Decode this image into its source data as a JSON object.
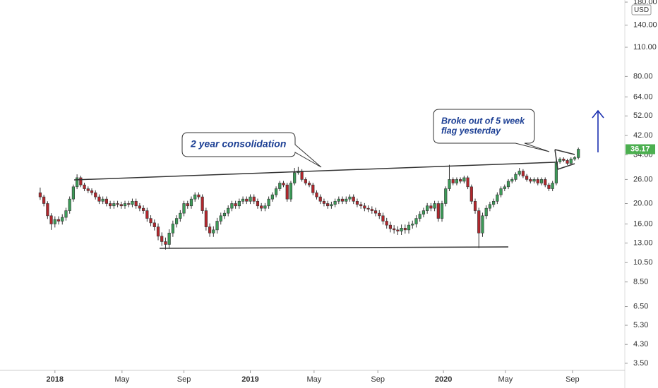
{
  "chart_data": {
    "type": "candlestick",
    "log_scale": true,
    "currency": "USD",
    "up_color": "#3c9b58",
    "down_color": "#b2262c",
    "xlim": [
      -10.9,
      158.6
    ],
    "xticks": [
      {
        "value": 4,
        "label": "2018"
      },
      {
        "value": 22.2,
        "label": "May"
      },
      {
        "value": 39,
        "label": "Sep"
      },
      {
        "value": 57,
        "label": "2019"
      },
      {
        "value": 74.3,
        "label": "May"
      },
      {
        "value": 91.6,
        "label": "Sep"
      },
      {
        "value": 109.4,
        "label": "2020"
      },
      {
        "value": 126.2,
        "label": "May"
      },
      {
        "value": 144.4,
        "label": "Sep"
      }
    ],
    "ylim": [
      3.24,
      184.2
    ],
    "yticks": [
      {
        "value": 3.5,
        "label": "3.50"
      },
      {
        "value": 4.3,
        "label": "4.30"
      },
      {
        "value": 5.3,
        "label": "5.30"
      },
      {
        "value": 6.5,
        "label": "6.50"
      },
      {
        "value": 8.5,
        "label": "8.50"
      },
      {
        "value": 10.5,
        "label": "10.50"
      },
      {
        "value": 13,
        "label": "13.00"
      },
      {
        "value": 16,
        "label": "16.00"
      },
      {
        "value": 20,
        "label": "20.00"
      },
      {
        "value": 26,
        "label": "26.00"
      },
      {
        "value": 34,
        "label": "34.00"
      },
      {
        "value": 42,
        "label": "42.00"
      },
      {
        "value": 52,
        "label": "52.00"
      },
      {
        "value": 64,
        "label": "64.00"
      },
      {
        "value": 80,
        "label": "80.00"
      },
      {
        "value": 110,
        "label": "110.00"
      },
      {
        "value": 140,
        "label": "140.00"
      },
      {
        "value": 180,
        "label": "180.00"
      }
    ],
    "annotations": [
      {
        "lines": [
          "2 year consolidation"
        ]
      },
      {
        "lines": [
          "Broke out of 5 week",
          "flag yesterday"
        ]
      }
    ],
    "candles": [
      [
        22.5,
        23.8,
        20.8,
        21.5
      ],
      [
        21.5,
        22.0,
        19.4,
        20.0
      ],
      [
        20.0,
        20.5,
        16.9,
        17.5
      ],
      [
        17.5,
        18.0,
        15.0,
        16.0
      ],
      [
        16.0,
        17.4,
        15.4,
        16.8
      ],
      [
        16.8,
        17.4,
        15.9,
        16.5
      ],
      [
        16.5,
        17.8,
        15.9,
        17.2
      ],
      [
        17.2,
        19.1,
        16.6,
        18.5
      ],
      [
        18.5,
        21.6,
        17.9,
        21.0
      ],
      [
        21.0,
        24.6,
        20.4,
        24.0
      ],
      [
        24.0,
        27.5,
        23.4,
        26.5
      ],
      [
        26.5,
        27.1,
        23.9,
        24.5
      ],
      [
        24.5,
        25.1,
        22.9,
        23.5
      ],
      [
        23.5,
        24.1,
        22.4,
        23.0
      ],
      [
        23.0,
        23.6,
        21.9,
        22.5
      ],
      [
        22.5,
        23.1,
        20.9,
        21.5
      ],
      [
        21.5,
        22.1,
        19.9,
        20.5
      ],
      [
        20.5,
        21.6,
        19.9,
        21.0
      ],
      [
        21.0,
        21.6,
        19.4,
        20.0
      ],
      [
        20.0,
        20.6,
        18.9,
        19.5
      ],
      [
        19.5,
        20.6,
        18.9,
        20.0
      ],
      [
        20.0,
        20.6,
        19.2,
        19.8
      ],
      [
        19.8,
        20.4,
        18.9,
        19.5
      ],
      [
        19.5,
        20.6,
        18.9,
        20.0
      ],
      [
        20.0,
        20.6,
        19.2,
        19.8
      ],
      [
        19.8,
        21.1,
        19.2,
        20.5
      ],
      [
        20.5,
        21.1,
        18.9,
        19.5
      ],
      [
        19.5,
        20.1,
        18.4,
        19.0
      ],
      [
        19.0,
        19.6,
        17.9,
        18.5
      ],
      [
        18.5,
        19.1,
        16.4,
        17.0
      ],
      [
        17.0,
        17.6,
        15.6,
        16.2
      ],
      [
        16.2,
        16.8,
        14.9,
        15.5
      ],
      [
        15.5,
        16.1,
        13.4,
        14.0
      ],
      [
        14.0,
        14.6,
        12.6,
        13.2
      ],
      [
        13.2,
        13.8,
        12.1,
        12.8
      ],
      [
        12.8,
        15.1,
        12.2,
        14.5
      ],
      [
        14.5,
        16.6,
        13.9,
        16.0
      ],
      [
        16.0,
        17.6,
        15.4,
        17.0
      ],
      [
        17.0,
        18.6,
        16.4,
        18.0
      ],
      [
        18.0,
        20.6,
        17.4,
        20.0
      ],
      [
        20.0,
        20.6,
        18.9,
        19.5
      ],
      [
        19.5,
        21.6,
        18.9,
        21.0
      ],
      [
        21.0,
        22.6,
        20.4,
        22.0
      ],
      [
        22.0,
        22.6,
        20.9,
        21.5
      ],
      [
        21.5,
        22.1,
        17.9,
        18.5
      ],
      [
        18.5,
        19.1,
        14.9,
        15.5
      ],
      [
        15.5,
        16.1,
        13.9,
        14.5
      ],
      [
        14.5,
        15.6,
        13.9,
        15.0
      ],
      [
        15.0,
        17.1,
        14.4,
        16.5
      ],
      [
        16.5,
        18.1,
        15.9,
        17.5
      ],
      [
        17.5,
        18.6,
        16.9,
        18.0
      ],
      [
        18.0,
        19.6,
        17.4,
        19.0
      ],
      [
        19.0,
        20.6,
        18.4,
        20.0
      ],
      [
        20.0,
        20.6,
        18.9,
        19.5
      ],
      [
        19.5,
        21.1,
        18.9,
        20.5
      ],
      [
        20.5,
        21.6,
        19.9,
        21.0
      ],
      [
        21.0,
        21.6,
        19.9,
        20.5
      ],
      [
        20.5,
        22.1,
        19.9,
        21.5
      ],
      [
        21.5,
        22.1,
        19.9,
        20.5
      ],
      [
        20.5,
        21.1,
        18.9,
        19.5
      ],
      [
        19.5,
        20.1,
        18.4,
        19.0
      ],
      [
        19.0,
        20.1,
        18.4,
        19.5
      ],
      [
        19.5,
        21.6,
        18.9,
        21.0
      ],
      [
        21.0,
        22.6,
        20.4,
        22.0
      ],
      [
        22.0,
        24.1,
        21.4,
        23.5
      ],
      [
        23.5,
        25.6,
        22.9,
        25.0
      ],
      [
        25.0,
        25.6,
        23.9,
        24.5
      ],
      [
        24.5,
        25.1,
        20.4,
        21.0
      ],
      [
        21.0,
        25.6,
        20.4,
        25.0
      ],
      [
        25.0,
        29.5,
        24.4,
        28.0
      ],
      [
        28.0,
        29.8,
        27.4,
        28.5
      ],
      [
        28.5,
        29.1,
        25.4,
        26.0
      ],
      [
        26.0,
        26.6,
        24.4,
        25.0
      ],
      [
        25.0,
        25.6,
        23.9,
        24.5
      ],
      [
        24.5,
        25.1,
        21.9,
        22.5
      ],
      [
        22.5,
        23.1,
        20.9,
        21.5
      ],
      [
        21.5,
        22.1,
        19.9,
        20.5
      ],
      [
        20.5,
        21.1,
        19.4,
        20.0
      ],
      [
        20.0,
        20.6,
        18.9,
        19.5
      ],
      [
        19.5,
        20.4,
        18.9,
        19.8
      ],
      [
        19.8,
        21.1,
        19.2,
        20.5
      ],
      [
        20.5,
        21.6,
        19.9,
        21.0
      ],
      [
        21.0,
        21.6,
        19.9,
        20.5
      ],
      [
        20.5,
        21.6,
        19.9,
        21.0
      ],
      [
        21.0,
        22.1,
        20.4,
        21.5
      ],
      [
        21.5,
        22.1,
        19.9,
        20.5
      ],
      [
        20.5,
        21.1,
        19.2,
        19.8
      ],
      [
        19.8,
        20.4,
        18.9,
        19.5
      ],
      [
        19.5,
        20.1,
        18.4,
        19.0
      ],
      [
        19.0,
        19.6,
        18.2,
        18.8
      ],
      [
        18.8,
        19.4,
        17.9,
        18.5
      ],
      [
        18.5,
        19.1,
        17.4,
        18.0
      ],
      [
        18.0,
        18.6,
        16.9,
        17.5
      ],
      [
        17.5,
        18.1,
        15.9,
        16.5
      ],
      [
        16.5,
        17.1,
        15.2,
        15.8
      ],
      [
        15.8,
        16.4,
        14.6,
        15.2
      ],
      [
        15.2,
        15.8,
        14.4,
        15.0
      ],
      [
        15.0,
        15.6,
        14.2,
        14.8
      ],
      [
        14.8,
        15.9,
        14.2,
        15.3
      ],
      [
        15.3,
        15.9,
        14.4,
        15.0
      ],
      [
        15.0,
        16.4,
        14.4,
        15.8
      ],
      [
        15.8,
        16.6,
        15.2,
        16.0
      ],
      [
        16.0,
        17.6,
        15.4,
        17.0
      ],
      [
        17.0,
        18.4,
        16.4,
        17.8
      ],
      [
        17.8,
        19.1,
        17.2,
        18.5
      ],
      [
        18.5,
        20.1,
        17.9,
        19.5
      ],
      [
        19.5,
        20.1,
        18.4,
        19.0
      ],
      [
        19.0,
        20.6,
        18.4,
        20.0
      ],
      [
        20.0,
        20.6,
        16.4,
        17.0
      ],
      [
        17.0,
        20.6,
        16.4,
        20.0
      ],
      [
        20.0,
        24.1,
        19.4,
        23.5
      ],
      [
        23.5,
        30.5,
        22.9,
        26.0
      ],
      [
        26.0,
        26.6,
        24.4,
        25.0
      ],
      [
        25.0,
        26.6,
        24.4,
        26.0
      ],
      [
        26.0,
        26.6,
        24.9,
        25.5
      ],
      [
        25.5,
        27.1,
        24.9,
        26.5
      ],
      [
        26.5,
        27.1,
        23.4,
        24.0
      ],
      [
        24.0,
        24.6,
        19.9,
        20.5
      ],
      [
        20.5,
        21.1,
        17.9,
        18.5
      ],
      [
        18.5,
        19.1,
        12.3,
        14.5
      ],
      [
        14.5,
        18.1,
        13.9,
        17.5
      ],
      [
        17.5,
        19.6,
        16.9,
        19.0
      ],
      [
        19.0,
        20.4,
        18.4,
        19.8
      ],
      [
        19.8,
        21.1,
        19.2,
        20.5
      ],
      [
        20.5,
        22.6,
        19.9,
        22.0
      ],
      [
        22.0,
        24.1,
        21.4,
        23.5
      ],
      [
        23.5,
        24.6,
        22.9,
        24.0
      ],
      [
        24.0,
        26.1,
        23.4,
        25.5
      ],
      [
        25.5,
        26.6,
        24.9,
        26.0
      ],
      [
        26.0,
        28.1,
        25.4,
        27.5
      ],
      [
        27.5,
        29.5,
        26.9,
        28.5
      ],
      [
        28.5,
        29.1,
        26.4,
        27.0
      ],
      [
        27.0,
        27.6,
        25.4,
        26.0
      ],
      [
        26.0,
        26.6,
        24.9,
        25.5
      ],
      [
        25.5,
        26.6,
        24.9,
        26.0
      ],
      [
        26.0,
        26.6,
        24.4,
        25.0
      ],
      [
        25.0,
        26.6,
        24.4,
        26.0
      ],
      [
        26.0,
        26.6,
        23.9,
        24.5
      ],
      [
        24.5,
        25.1,
        22.9,
        23.5
      ],
      [
        23.5,
        25.6,
        22.9,
        25.0
      ],
      [
        25.0,
        32.1,
        24.4,
        31.5
      ],
      [
        31.5,
        33.1,
        30.9,
        32.5
      ],
      [
        32.5,
        33.1,
        31.4,
        32.0
      ],
      [
        32.0,
        32.6,
        30.4,
        31.0
      ],
      [
        31.0,
        33.1,
        30.4,
        32.5
      ],
      [
        32.5,
        33.6,
        31.9,
        33.0
      ],
      [
        33.0,
        36.8,
        32.4,
        36.17
      ]
    ]
  }
}
